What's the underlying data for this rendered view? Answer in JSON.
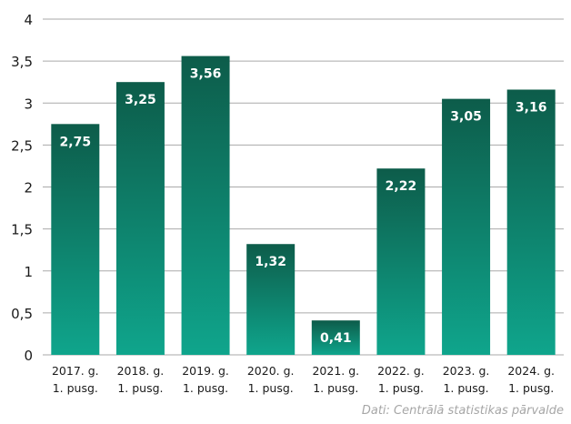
{
  "chart_data": {
    "type": "bar",
    "title": "",
    "xlabel": "",
    "ylabel": "",
    "ylim": [
      0,
      4
    ],
    "yticks": [
      "0",
      "0,5",
      "1",
      "1,5",
      "2",
      "2,5",
      "3",
      "3,5",
      "4"
    ],
    "grid": true,
    "categories": [
      [
        "2017. g.",
        "1. pusg."
      ],
      [
        "2018. g.",
        "1. pusg."
      ],
      [
        "2019. g.",
        "1. pusg."
      ],
      [
        "2020. g.",
        "1. pusg."
      ],
      [
        "2021. g.",
        "1. pusg."
      ],
      [
        "2022. g.",
        "1. pusg."
      ],
      [
        "2023. g.",
        "1. pusg."
      ],
      [
        "2024. g.",
        "1. pusg."
      ]
    ],
    "values": [
      2.75,
      3.25,
      3.56,
      1.32,
      0.41,
      2.22,
      3.05,
      3.16
    ],
    "value_labels": [
      "2,75",
      "3,25",
      "3,56",
      "1,32",
      "0,41",
      "2,22",
      "3,05",
      "3,16"
    ],
    "colors": {
      "bar_top": "#0d5c4a",
      "bar_bottom": "#0fa58c",
      "grid": "#aaaaaa"
    }
  },
  "source": "Dati: Centrālā statistikas pārvalde"
}
